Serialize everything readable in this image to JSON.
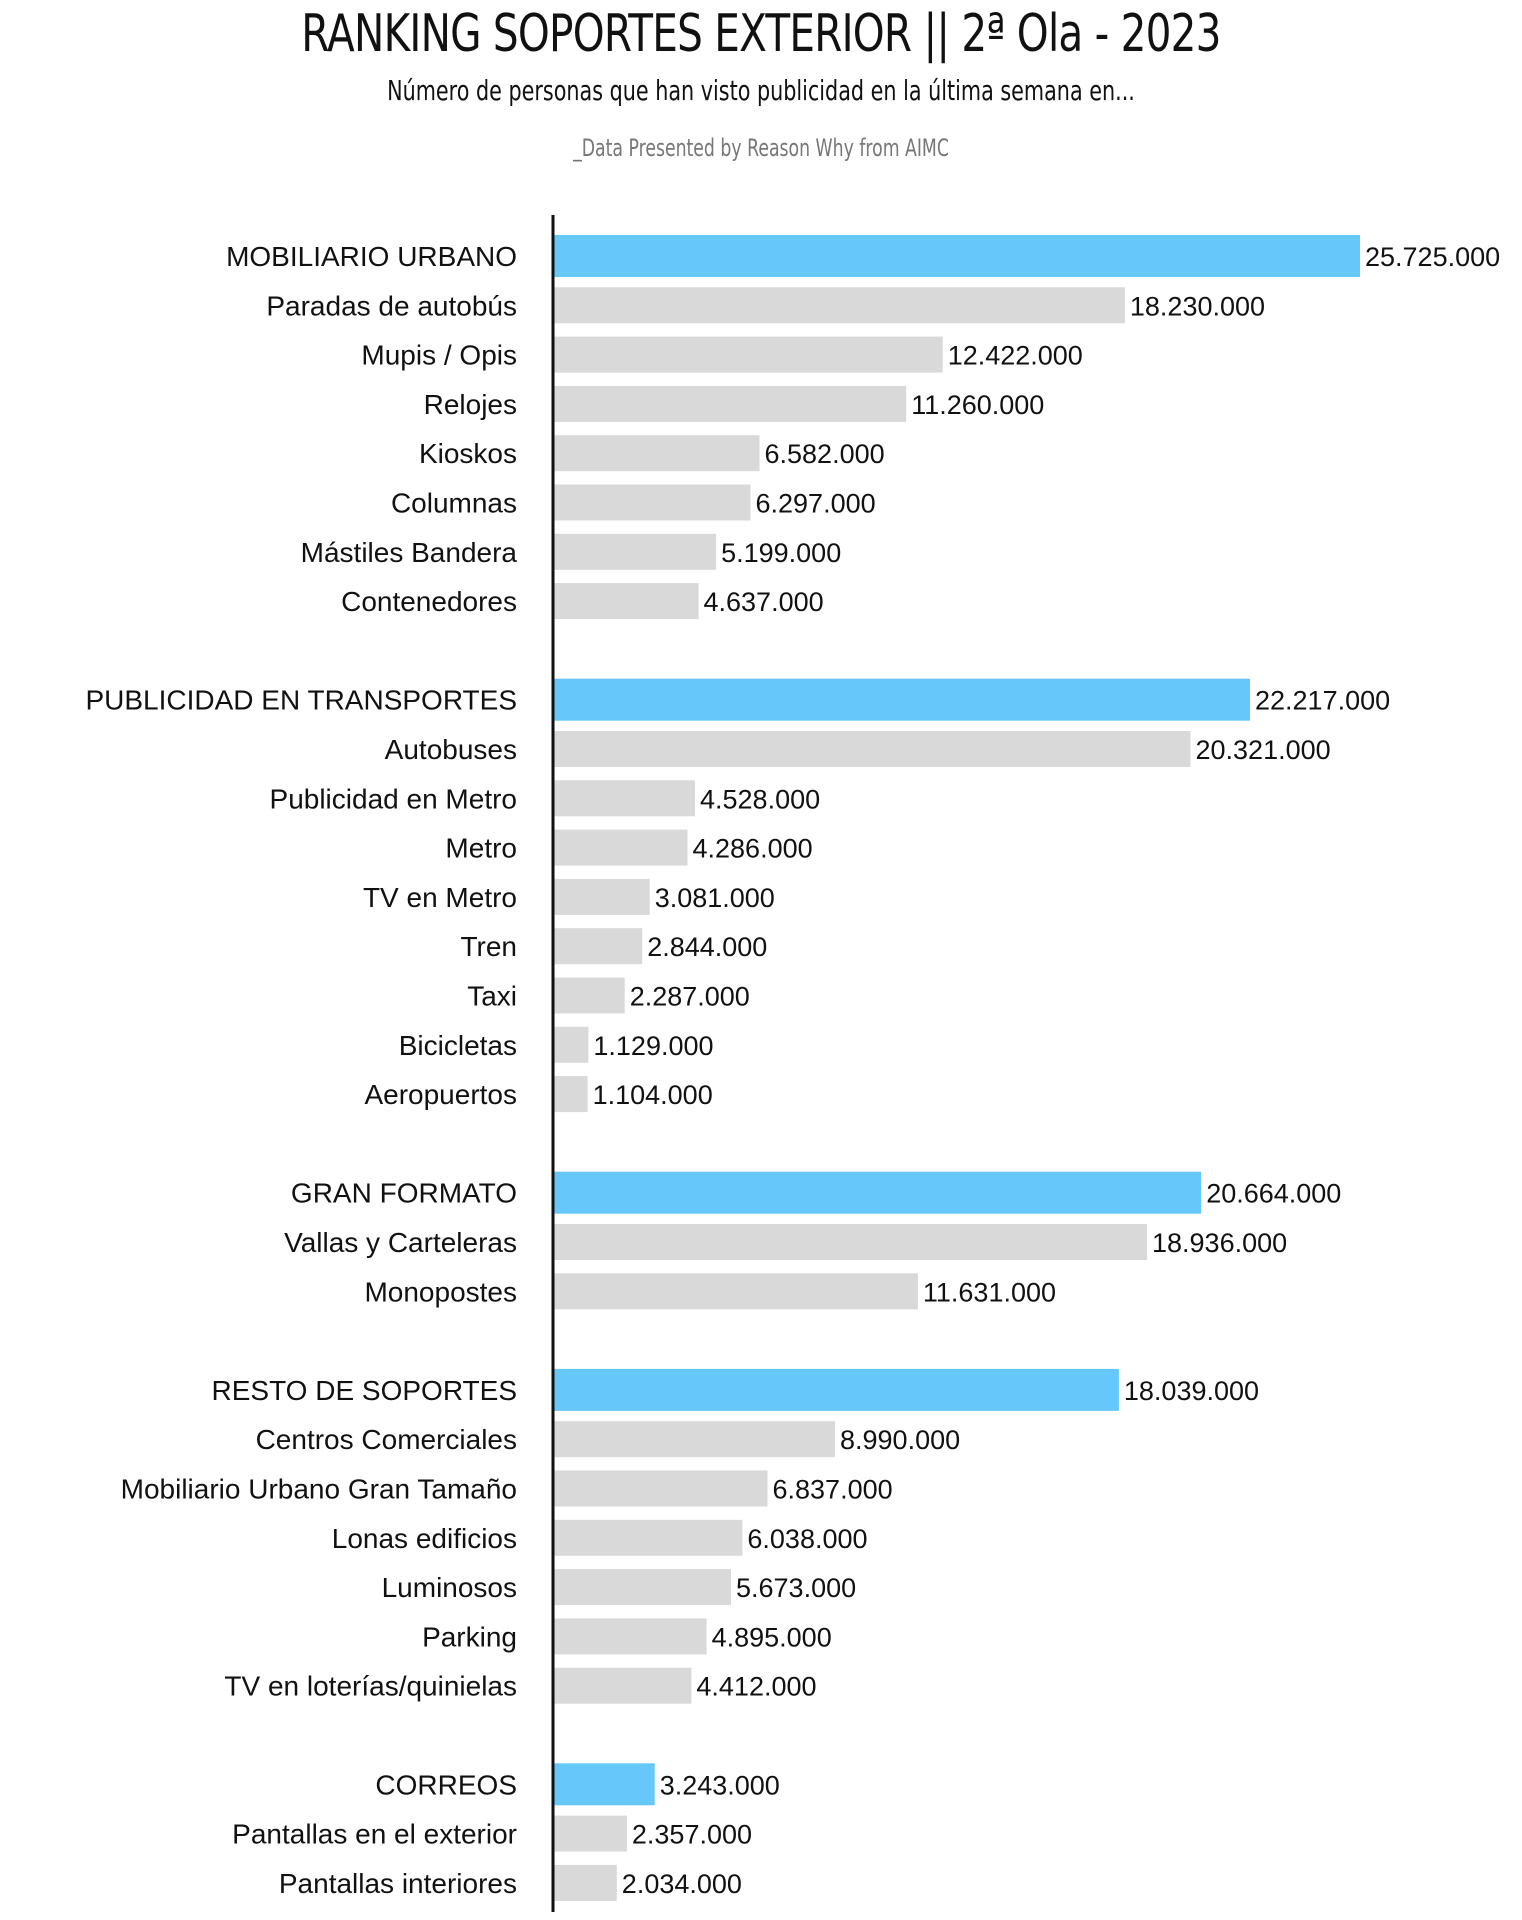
{
  "title": "RANKING SOPORTES EXTERIOR || 2ª Ola - 2023",
  "subtitle": "Número de personas que han visto publicidad en la última semana en...",
  "source": "_Data Presented by Reason Why from AIMC",
  "colors": {
    "group_bar": "#66c8fa",
    "item_bar": "#d9d9d9",
    "axis": "#111111"
  },
  "chart_data": {
    "type": "bar",
    "orientation": "horizontal",
    "grid": false,
    "title": "RANKING SOPORTES EXTERIOR || 2ª Ola - 2023",
    "categories": [
      "MOBILIARIO URBANO",
      "Paradas de autobús",
      "Mupis / Opis",
      "Relojes",
      "Kioskos",
      "Columnas",
      "Mástiles Bandera",
      "Contenedores",
      "PUBLICIDAD EN TRANSPORTES",
      "Autobuses",
      "Publicidad en Metro",
      "Metro",
      "TV en Metro",
      "Tren",
      "Taxi",
      "Bicicletas",
      "Aeropuertos",
      "GRAN FORMATO",
      "Vallas y Carteleras",
      "Monopostes",
      "RESTO DE SOPORTES",
      "Centros Comerciales",
      "Mobiliario Urbano Gran Tamaño",
      "Lonas edificios",
      "Luminosos",
      "Parking",
      "TV en loterías/quinielas",
      "CORREOS",
      "Pantallas en el exterior",
      "Pantallas interiores"
    ],
    "values": [
      25725000,
      18230000,
      12422000,
      11260000,
      6582000,
      6297000,
      5199000,
      4637000,
      22217000,
      20321000,
      4528000,
      4286000,
      3081000,
      2844000,
      2287000,
      1129000,
      1104000,
      20664000,
      18936000,
      11631000,
      18039000,
      8990000,
      6837000,
      6038000,
      5673000,
      4895000,
      4412000,
      3243000,
      2357000,
      2034000
    ],
    "value_labels": [
      "25.725.000",
      "18.230.000",
      "12.422.000",
      "11.260.000",
      "6.582.000",
      "6.297.000",
      "5.199.000",
      "4.637.000",
      "22.217.000",
      "20.321.000",
      "4.528.000",
      "4.286.000",
      "3.081.000",
      "2.844.000",
      "2.287.000",
      "1.129.000",
      "1.104.000",
      "20.664.000",
      "18.936.000",
      "11.631.000",
      "18.039.000",
      "8.990.000",
      "6.837.000",
      "6.038.000",
      "5.673.000",
      "4.895.000",
      "4.412.000",
      "3.243.000",
      "2.357.000",
      "2.034.000"
    ],
    "is_group": [
      true,
      false,
      false,
      false,
      false,
      false,
      false,
      false,
      true,
      false,
      false,
      false,
      false,
      false,
      false,
      false,
      false,
      true,
      false,
      false,
      true,
      false,
      false,
      false,
      false,
      false,
      false,
      true,
      false,
      false
    ],
    "xlim": [
      0,
      25725000
    ]
  }
}
